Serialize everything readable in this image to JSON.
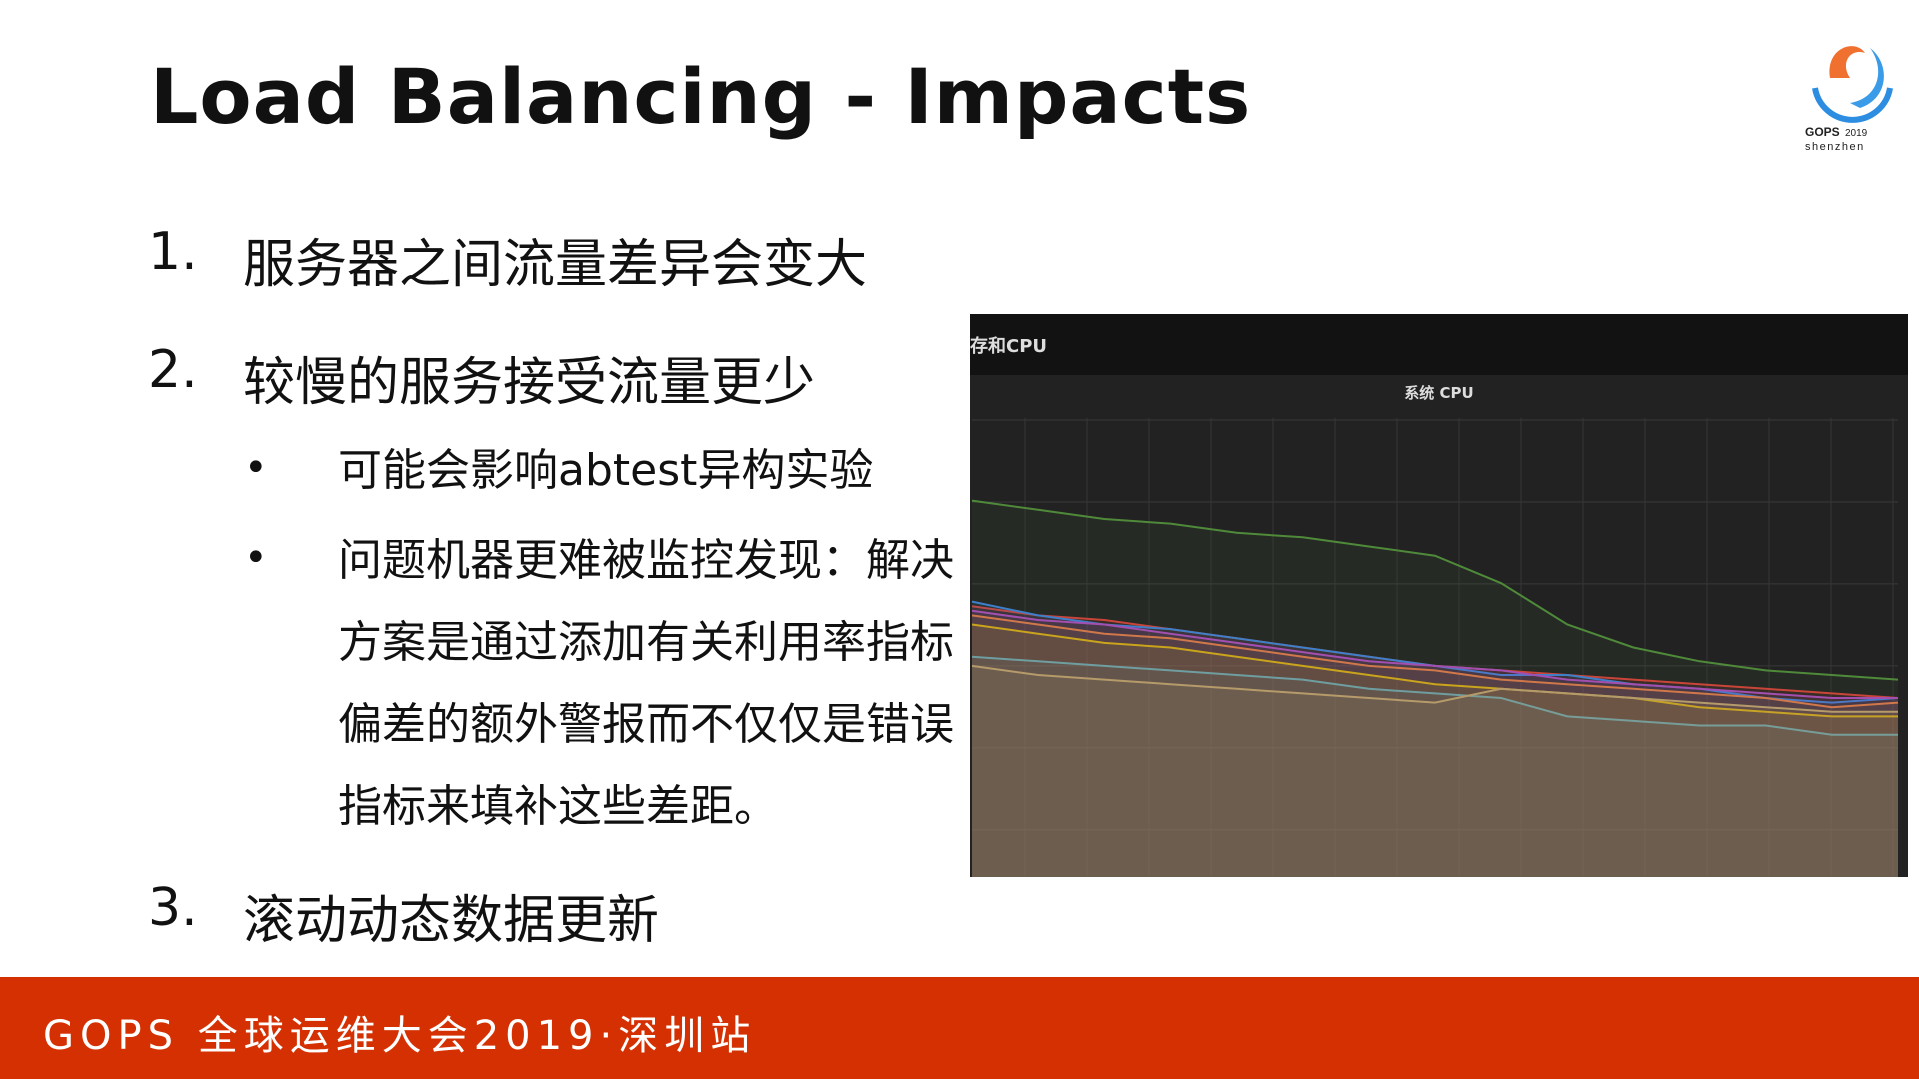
{
  "slide": {
    "title": "Load Balancing - Impacts",
    "items": [
      {
        "num": "1.",
        "text": "服务器之间流量差异会变大"
      },
      {
        "num": "2.",
        "text": "较慢的服务接受流量更少"
      },
      {
        "num": "3.",
        "text": "滚动动态数据更新"
      }
    ],
    "bullets": [
      {
        "marker": "•",
        "text": "可能会影响abtest异构实验"
      },
      {
        "marker": "•",
        "text": "问题机器更难被监控发现：解决方案是通过添加有关利用率指标偏差的额外警报而不仅仅是错误指标来填补这些差距。"
      }
    ]
  },
  "logo": {
    "brand": "GOPS",
    "year": "2019",
    "city": "shenzhen"
  },
  "footer": {
    "text": "GOPS 全球运维大会2019·深圳站",
    "color": "#d43002"
  },
  "chart_data": {
    "type": "area",
    "panel_header": "存和CPU",
    "title": "系统 CPU",
    "grid": true,
    "ylim": [
      0,
      100
    ],
    "series": [
      {
        "color": "#4f8a3a",
        "values": [
          82,
          80,
          78,
          77,
          75,
          74,
          72,
          70,
          64,
          55,
          50,
          47,
          45,
          44,
          43
        ]
      },
      {
        "color": "#c9453a",
        "values": [
          59,
          57,
          56,
          54,
          52,
          50,
          48,
          46,
          45,
          44,
          43,
          42,
          41,
          40,
          39
        ]
      },
      {
        "color": "#3f7fc9",
        "values": [
          60,
          57,
          55,
          54,
          52,
          50,
          48,
          46,
          44,
          44,
          42,
          41,
          39,
          38,
          39
        ]
      },
      {
        "color": "#a34fb0",
        "values": [
          58,
          56,
          55,
          53,
          51,
          49,
          47,
          46,
          45,
          43,
          42,
          41,
          40,
          39,
          39
        ]
      },
      {
        "color": "#d0784a",
        "values": [
          57,
          55,
          53,
          52,
          50,
          48,
          46,
          45,
          43,
          42,
          41,
          40,
          39,
          37,
          38
        ]
      },
      {
        "color": "#c9a41c",
        "values": [
          55,
          53,
          51,
          50,
          48,
          46,
          44,
          42,
          41,
          40,
          39,
          37,
          36,
          35,
          35
        ]
      },
      {
        "color": "#6f9ea0",
        "values": [
          48,
          47,
          46,
          45,
          44,
          43,
          41,
          40,
          39,
          35,
          34,
          33,
          33,
          31,
          31
        ]
      },
      {
        "color": "#b59a6a",
        "values": [
          46,
          44,
          43,
          42,
          41,
          40,
          39,
          38,
          41,
          40,
          39,
          38,
          37,
          36,
          36
        ]
      }
    ]
  }
}
